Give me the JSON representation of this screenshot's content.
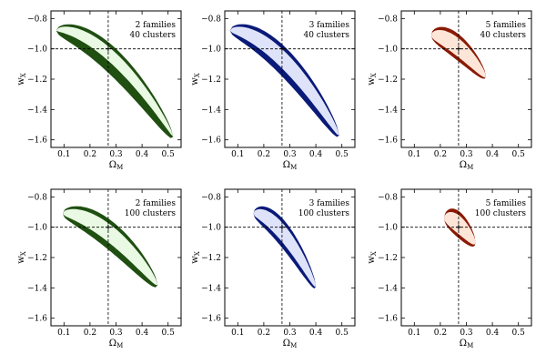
{
  "chart_data": [
    {
      "type": "contour",
      "title": "",
      "annotation": [
        "2 families",
        "40 clusters"
      ],
      "xlabel": "Ω",
      "xlabel_sub": "M",
      "ylabel": "w",
      "ylabel_sub": "X",
      "xlim": [
        0.05,
        0.55
      ],
      "ylim": [
        -1.65,
        -0.75
      ],
      "x_ticks": [
        0.1,
        0.2,
        0.3,
        0.4,
        0.5
      ],
      "y_ticks": [
        -1.6,
        -1.4,
        -1.2,
        -1.0,
        -0.8
      ],
      "fiducial": {
        "x": 0.27,
        "y": -1.0
      },
      "colors": [
        "#1f4f11",
        "#5cc64a",
        "#a4e292",
        "#e9f9e3"
      ],
      "contour_shape": {
        "x0": 0.07,
        "x1": 0.52,
        "a": 0.3,
        "u": [
          0.1,
          0.35,
          0.72
        ],
        "l": [
          -0.02,
          0.06,
          0.22
        ],
        "peak": -0.88,
        "end": -1.58
      }
    },
    {
      "type": "contour",
      "title": "",
      "annotation": [
        "3 families",
        "40 clusters"
      ],
      "xlabel": "Ω",
      "xlabel_sub": "M",
      "ylabel": "w",
      "ylabel_sub": "X",
      "xlim": [
        0.05,
        0.55
      ],
      "ylim": [
        -1.65,
        -0.75
      ],
      "x_ticks": [
        0.1,
        0.2,
        0.3,
        0.4,
        0.5
      ],
      "y_ticks": [
        -1.6,
        -1.4,
        -1.2,
        -1.0,
        -0.8
      ],
      "fiducial": {
        "x": 0.27,
        "y": -1.0
      },
      "colors": [
        "#0a1a78",
        "#3847c6",
        "#8e9be6",
        "#dfe3fa"
      ],
      "contour_shape": {
        "x0": 0.07,
        "x1": 0.49,
        "a": 0.38,
        "u": [
          0.1,
          0.36,
          0.7
        ],
        "l": [
          0.18,
          0.34,
          0.5
        ],
        "peak": -0.88,
        "end": -1.57
      }
    },
    {
      "type": "contour",
      "title": "",
      "annotation": [
        "5 families",
        "40 clusters"
      ],
      "xlabel": "Ω",
      "xlabel_sub": "M",
      "ylabel": "w",
      "ylabel_sub": "X",
      "xlim": [
        0.05,
        0.55
      ],
      "ylim": [
        -1.65,
        -0.75
      ],
      "x_ticks": [
        0.1,
        0.2,
        0.3,
        0.4,
        0.5
      ],
      "y_ticks": [
        -1.6,
        -1.4,
        -1.2,
        -1.0,
        -0.8
      ],
      "fiducial": {
        "x": 0.27,
        "y": -1.0
      },
      "colors": [
        "#8a1a05",
        "#e8572a",
        "#f7a27a",
        "#fde6d8"
      ],
      "contour_shape": {
        "x0": 0.165,
        "x1": 0.375,
        "a": 0.0,
        "u": [
          0.12,
          0.36,
          0.7
        ],
        "l": [
          0.12,
          0.36,
          0.7
        ],
        "peak": -0.91,
        "end": -1.18
      }
    },
    {
      "type": "contour",
      "title": "",
      "annotation": [
        "2 families",
        "100 clusters"
      ],
      "xlabel": "Ω",
      "xlabel_sub": "M",
      "ylabel": "w",
      "ylabel_sub": "X",
      "xlim": [
        0.05,
        0.55
      ],
      "ylim": [
        -1.65,
        -0.75
      ],
      "x_ticks": [
        0.1,
        0.2,
        0.3,
        0.4,
        0.5
      ],
      "y_ticks": [
        -1.6,
        -1.4,
        -1.2,
        -1.0,
        -0.8
      ],
      "fiducial": {
        "x": 0.27,
        "y": -1.0
      },
      "colors": [
        "#1f4f11",
        "#5cc64a",
        "#a4e292",
        "#e9f9e3"
      ],
      "contour_shape": {
        "x0": 0.095,
        "x1": 0.46,
        "a": 0.3,
        "u": [
          0.12,
          0.36,
          0.7
        ],
        "l": [
          0.18,
          0.34,
          0.52
        ],
        "peak": -0.91,
        "end": -1.38
      }
    },
    {
      "type": "contour",
      "title": "",
      "annotation": [
        "3 families",
        "100 clusters"
      ],
      "xlabel": "Ω",
      "xlabel_sub": "M",
      "ylabel": "w",
      "ylabel_sub": "X",
      "xlim": [
        0.05,
        0.55
      ],
      "ylim": [
        -1.65,
        -0.75
      ],
      "x_ticks": [
        0.1,
        0.2,
        0.3,
        0.4,
        0.5
      ],
      "y_ticks": [
        -1.6,
        -1.4,
        -1.2,
        -1.0,
        -0.8
      ],
      "fiducial": {
        "x": 0.27,
        "y": -1.0
      },
      "colors": [
        "#0a1a78",
        "#3847c6",
        "#8e9be6",
        "#dfe3fa"
      ],
      "contour_shape": {
        "x0": 0.16,
        "x1": 0.4,
        "a": 0.2,
        "u": [
          0.12,
          0.36,
          0.7
        ],
        "l": [
          0.16,
          0.36,
          0.6
        ],
        "peak": -0.91,
        "end": -1.39
      }
    },
    {
      "type": "contour",
      "title": "",
      "annotation": [
        "5 families",
        "100 clusters"
      ],
      "xlabel": "Ω",
      "xlabel_sub": "M",
      "ylabel": "w",
      "ylabel_sub": "X",
      "xlim": [
        0.05,
        0.55
      ],
      "ylim": [
        -1.65,
        -0.75
      ],
      "x_ticks": [
        0.1,
        0.2,
        0.3,
        0.4,
        0.5
      ],
      "y_ticks": [
        -1.6,
        -1.4,
        -1.2,
        -1.0,
        -0.8
      ],
      "fiducial": {
        "x": 0.27,
        "y": -1.0
      },
      "colors": [
        "#8a1a05",
        "#e8572a",
        "#f7a27a",
        "#fde6d8"
      ],
      "contour_shape": {
        "x0": 0.215,
        "x1": 0.335,
        "a": 0.0,
        "u": [
          0.12,
          0.36,
          0.7
        ],
        "l": [
          0.12,
          0.36,
          0.7
        ],
        "peak": -0.94,
        "end": -1.1
      }
    }
  ]
}
